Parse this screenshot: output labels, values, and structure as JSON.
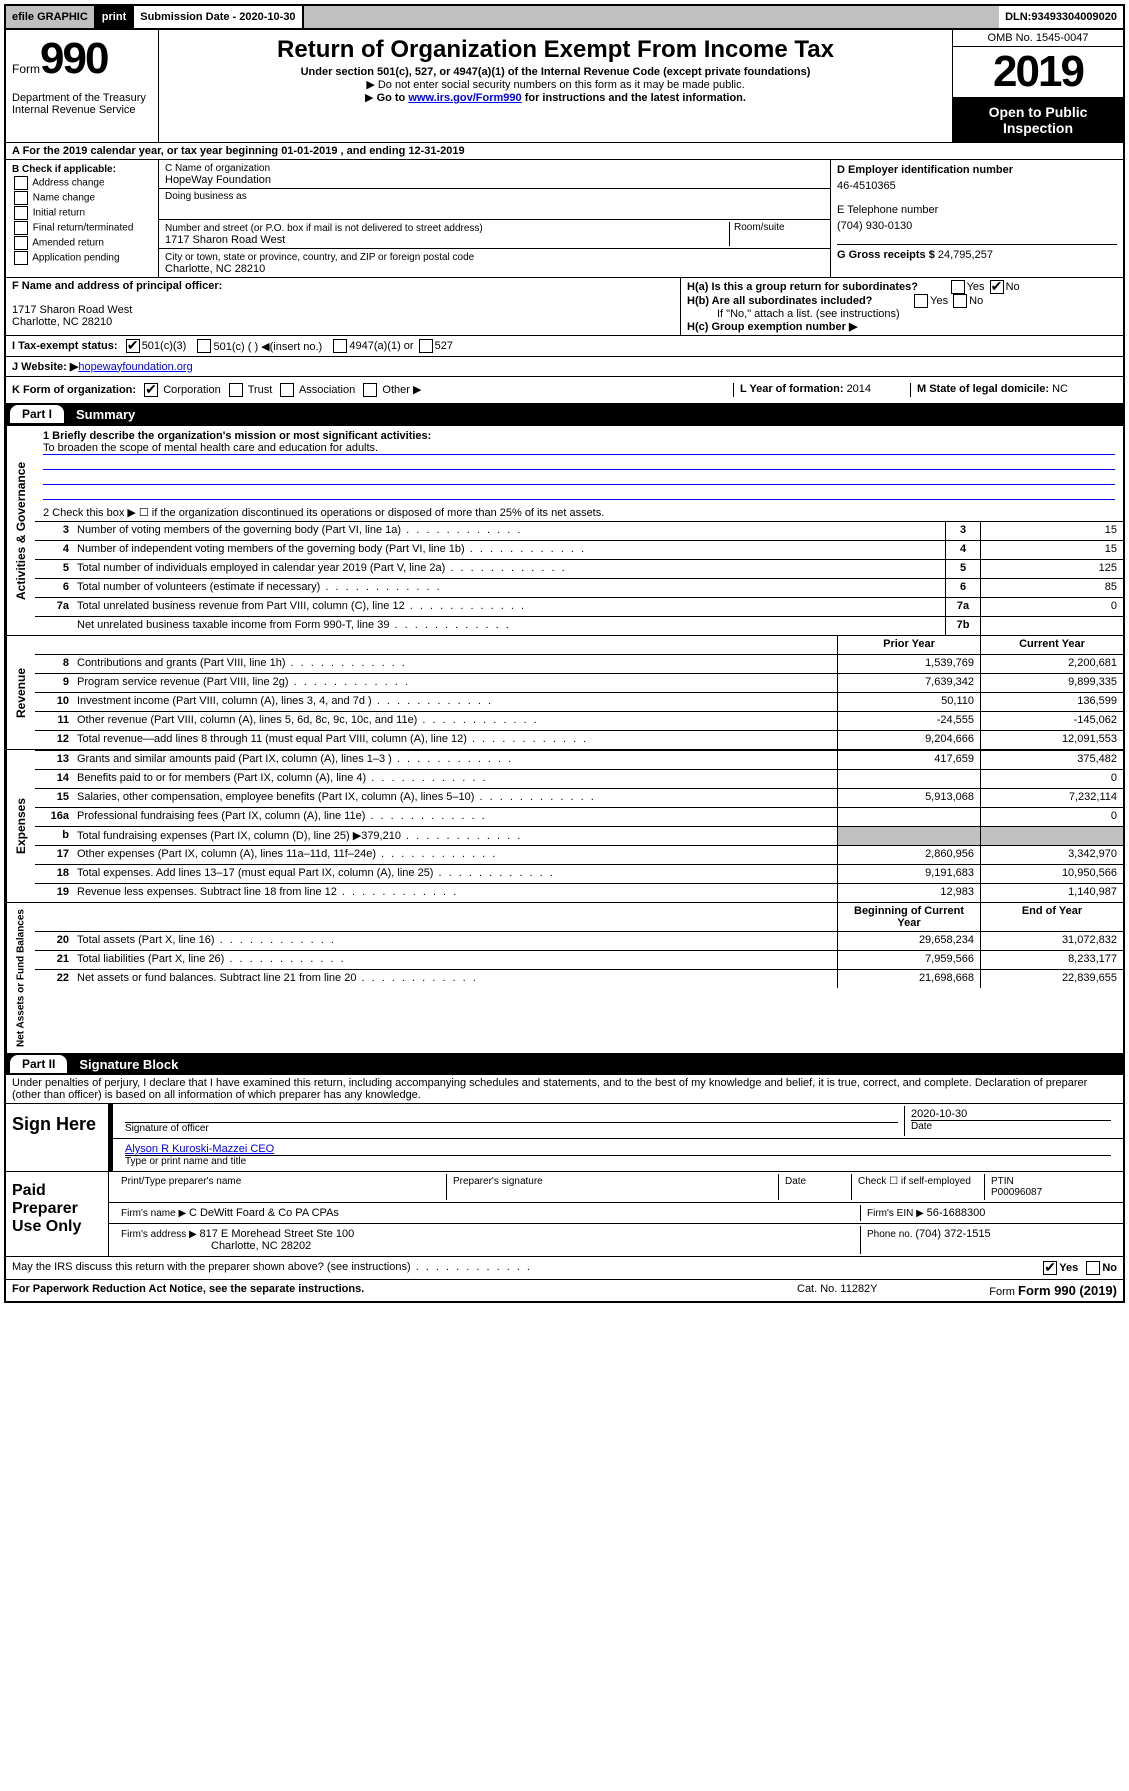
{
  "topbar": {
    "efile": "efile GRAPHIC",
    "print": "print",
    "subdate_label": "Submission Date - ",
    "subdate": "2020-10-30",
    "dln_label": "DLN: ",
    "dln": "93493304009020"
  },
  "header": {
    "form_word": "Form",
    "form_num": "990",
    "title": "Return of Organization Exempt From Income Tax",
    "sub1": "Under section 501(c), 527, or 4947(a)(1) of the Internal Revenue Code (except private foundations)",
    "sub2": "Do not enter social security numbers on this form as it may be made public.",
    "sub3_a": "Go to ",
    "sub3_link": "www.irs.gov/Form990",
    "sub3_b": " for instructions and the latest information.",
    "omb": "OMB No. 1545-0047",
    "year": "2019",
    "open": "Open to Public Inspection",
    "dept": "Department of the Treasury\nInternal Revenue Service"
  },
  "lineA": "A For the 2019 calendar year, or tax year beginning 01-01-2019   , and ending 12-31-2019",
  "boxB": {
    "label": "B Check if applicable:",
    "items": [
      "Address change",
      "Name change",
      "Initial return",
      "Final return/terminated",
      "Amended return",
      "Application pending"
    ]
  },
  "boxC": {
    "name_label": "C Name of organization",
    "name": "HopeWay Foundation",
    "dba_label": "Doing business as",
    "addr_label": "Number and street (or P.O. box if mail is not delivered to street address)",
    "room_label": "Room/suite",
    "addr": "1717 Sharon Road West",
    "city_label": "City or town, state or province, country, and ZIP or foreign postal code",
    "city": "Charlotte, NC  28210"
  },
  "boxD": {
    "label": "D Employer identification number",
    "val": "46-4510365"
  },
  "boxE": {
    "label": "E Telephone number",
    "val": "(704) 930-0130"
  },
  "boxG": {
    "label": "G Gross receipts $ ",
    "val": "24,795,257"
  },
  "boxF": {
    "label": "F  Name and address of principal officer:",
    "addr1": "1717 Sharon Road West",
    "addr2": "Charlotte, NC  28210"
  },
  "boxH": {
    "ha": "H(a)  Is this a group return for subordinates?",
    "hb": "H(b)  Are all subordinates included?",
    "hb_note": "If \"No,\" attach a list. (see instructions)",
    "hc": "H(c)  Group exemption number ▶",
    "yes": "Yes",
    "no": "No"
  },
  "rowI": {
    "label": "I    Tax-exempt status:",
    "o1": "501(c)(3)",
    "o2": "501(c) (  ) ◀(insert no.)",
    "o3": "4947(a)(1) or",
    "o4": "527"
  },
  "rowJ": {
    "label": "J   Website: ▶  ",
    "val": "hopewayfoundation.org"
  },
  "rowK": {
    "label": "K Form of organization:",
    "o1": "Corporation",
    "o2": "Trust",
    "o3": "Association",
    "o4": "Other ▶"
  },
  "rowL": {
    "label": "L Year of formation: ",
    "val": "2014"
  },
  "rowM": {
    "label": "M State of legal domicile: ",
    "val": "NC"
  },
  "part1": {
    "num": "Part I",
    "title": "Summary"
  },
  "part2": {
    "num": "Part II",
    "title": "Signature Block"
  },
  "summary": {
    "q1_label": "1   Briefly describe the organization's mission or most significant activities:",
    "q1_val": "To broaden the scope of mental health care and education for adults.",
    "q2": "2   Check this box ▶ ☐  if the organization discontinued its operations or disposed of more than 25% of its net assets.",
    "vlab_ag": "Activities & Governance",
    "vlab_rev": "Revenue",
    "vlab_exp": "Expenses",
    "vlab_net": "Net Assets or Fund Balances",
    "prior_hdr": "Prior Year",
    "curr_hdr": "Current Year",
    "begin_hdr": "Beginning of Current Year",
    "end_hdr": "End of Year",
    "rows_ag": [
      {
        "n": "3",
        "d": "Number of voting members of the governing body (Part VI, line 1a)",
        "b": "3",
        "v": "15"
      },
      {
        "n": "4",
        "d": "Number of independent voting members of the governing body (Part VI, line 1b)",
        "b": "4",
        "v": "15"
      },
      {
        "n": "5",
        "d": "Total number of individuals employed in calendar year 2019 (Part V, line 2a)",
        "b": "5",
        "v": "125"
      },
      {
        "n": "6",
        "d": "Total number of volunteers (estimate if necessary)",
        "b": "6",
        "v": "85"
      },
      {
        "n": "7a",
        "d": "Total unrelated business revenue from Part VIII, column (C), line 12",
        "b": "7a",
        "v": "0"
      },
      {
        "n": "",
        "d": "Net unrelated business taxable income from Form 990-T, line 39",
        "b": "7b",
        "v": ""
      }
    ],
    "rows_rev": [
      {
        "n": "8",
        "d": "Contributions and grants (Part VIII, line 1h)",
        "p": "1,539,769",
        "c": "2,200,681"
      },
      {
        "n": "9",
        "d": "Program service revenue (Part VIII, line 2g)",
        "p": "7,639,342",
        "c": "9,899,335"
      },
      {
        "n": "10",
        "d": "Investment income (Part VIII, column (A), lines 3, 4, and 7d )",
        "p": "50,110",
        "c": "136,599"
      },
      {
        "n": "11",
        "d": "Other revenue (Part VIII, column (A), lines 5, 6d, 8c, 9c, 10c, and 11e)",
        "p": "-24,555",
        "c": "-145,062"
      },
      {
        "n": "12",
        "d": "Total revenue—add lines 8 through 11 (must equal Part VIII, column (A), line 12)",
        "p": "9,204,666",
        "c": "12,091,553"
      }
    ],
    "rows_exp": [
      {
        "n": "13",
        "d": "Grants and similar amounts paid (Part IX, column (A), lines 1–3 )",
        "p": "417,659",
        "c": "375,482"
      },
      {
        "n": "14",
        "d": "Benefits paid to or for members (Part IX, column (A), line 4)",
        "p": "",
        "c": "0"
      },
      {
        "n": "15",
        "d": "Salaries, other compensation, employee benefits (Part IX, column (A), lines 5–10)",
        "p": "5,913,068",
        "c": "7,232,114"
      },
      {
        "n": "16a",
        "d": "Professional fundraising fees (Part IX, column (A), line 11e)",
        "p": "",
        "c": "0"
      },
      {
        "n": "b",
        "d": "Total fundraising expenses (Part IX, column (D), line 25) ▶379,210",
        "p": "GREY",
        "c": "GREY"
      },
      {
        "n": "17",
        "d": "Other expenses (Part IX, column (A), lines 11a–11d, 11f–24e)",
        "p": "2,860,956",
        "c": "3,342,970"
      },
      {
        "n": "18",
        "d": "Total expenses. Add lines 13–17 (must equal Part IX, column (A), line 25)",
        "p": "9,191,683",
        "c": "10,950,566"
      },
      {
        "n": "19",
        "d": "Revenue less expenses. Subtract line 18 from line 12",
        "p": "12,983",
        "c": "1,140,987"
      }
    ],
    "rows_net": [
      {
        "n": "20",
        "d": "Total assets (Part X, line 16)",
        "p": "29,658,234",
        "c": "31,072,832"
      },
      {
        "n": "21",
        "d": "Total liabilities (Part X, line 26)",
        "p": "7,959,566",
        "c": "8,233,177"
      },
      {
        "n": "22",
        "d": "Net assets or fund balances. Subtract line 21 from line 20",
        "p": "21,698,668",
        "c": "22,839,655"
      }
    ]
  },
  "sig": {
    "perjury": "Under penalties of perjury, I declare that I have examined this return, including accompanying schedules and statements, and to the best of my knowledge and belief, it is true, correct, and complete. Declaration of preparer (other than officer) is based on all information of which preparer has any knowledge.",
    "sign_here": "Sign Here",
    "sig_officer": "Signature of officer",
    "date": "2020-10-30",
    "date_label": "Date",
    "officer_name": "Alyson R Kuroski-Mazzei CEO",
    "type_name": "Type or print name and title",
    "paid": "Paid Preparer Use Only",
    "prep_name_label": "Print/Type preparer's name",
    "prep_sig_label": "Preparer's signature",
    "prep_date_label": "Date",
    "check_self": "Check ☐ if self-employed",
    "ptin_label": "PTIN",
    "ptin": "P00096087",
    "firm_name_label": "Firm's name      ▶ ",
    "firm_name": "C DeWitt Foard & Co PA CPAs",
    "firm_ein_label": "Firm's EIN ▶ ",
    "firm_ein": "56-1688300",
    "firm_addr_label": "Firm's address  ▶ ",
    "firm_addr": "817 E Morehead Street Ste 100",
    "firm_city": "Charlotte, NC  28202",
    "phone_label": "Phone no. ",
    "phone": "(704) 372-1515",
    "discuss": "May the IRS discuss this return with the preparer shown above? (see instructions)"
  },
  "footer": {
    "paperwork": "For Paperwork Reduction Act Notice, see the separate instructions.",
    "cat": "Cat. No. 11282Y",
    "form": "Form 990 (2019)"
  }
}
